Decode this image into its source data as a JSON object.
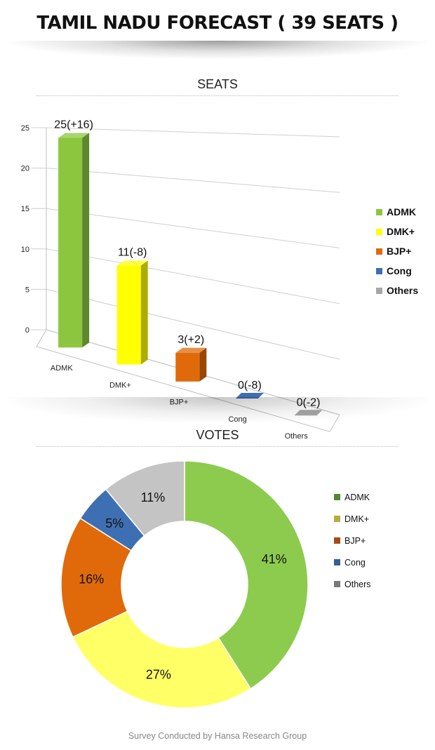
{
  "header": {
    "title": "TAMIL NADU FORECAST ( 39 SEATS )"
  },
  "seats": {
    "section_title": "SEATS"
  },
  "votes": {
    "section_title": "VOTES"
  },
  "footer": {
    "text": "Survey Conducted by Hansa Research Group"
  },
  "chart_data": [
    {
      "type": "bar",
      "title": "SEATS",
      "categories": [
        "ADMK",
        "DMK+",
        "BJP+",
        "Cong",
        "Others"
      ],
      "values": [
        25,
        11,
        3,
        0,
        0
      ],
      "data_labels": [
        "25(+16)",
        "11(-8)",
        "3(+2)",
        "0(-8)",
        "0(-2)"
      ],
      "yticks": [
        0,
        5,
        10,
        15,
        20,
        25
      ],
      "ylim": [
        0,
        25
      ],
      "grid": true,
      "legend": "right",
      "legend_entries": [
        "ADMK",
        "DMK+",
        "BJP+",
        "Cong",
        "Others"
      ],
      "colors": [
        "#8CC63F",
        "#FFFF00",
        "#E06A0A",
        "#3E6FB2",
        "#A6A6A6"
      ]
    },
    {
      "type": "pie",
      "title": "VOTES",
      "labels": [
        "ADMK",
        "DMK+",
        "BJP+",
        "Cong",
        "Others"
      ],
      "values": [
        41,
        27,
        16,
        5,
        11
      ],
      "data_labels": [
        "41%",
        "27%",
        "16%",
        "5%",
        "11%"
      ],
      "donut": true,
      "legend": "right",
      "legend_entries": [
        "ADMK",
        "DMK+",
        "BJP+",
        "Cong",
        "Others"
      ],
      "colors": [
        "#8CCB4E",
        "#FFFF66",
        "#E06A0A",
        "#3E6FB2",
        "#C4C4C4"
      ],
      "legend_colors": [
        "#4E8A2E",
        "#B3AE3C",
        "#A84B12",
        "#355E95",
        "#7A7A7A"
      ]
    }
  ]
}
